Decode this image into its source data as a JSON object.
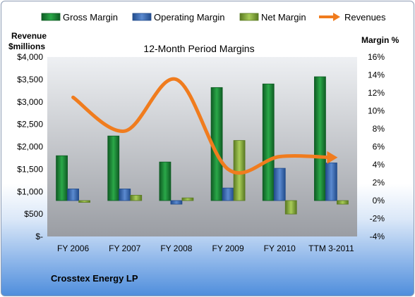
{
  "legend": [
    {
      "label": "Gross Margin",
      "color": "#1e8c3a",
      "kind": "box"
    },
    {
      "label": "Operating Margin",
      "color": "#3d6fb8",
      "kind": "box"
    },
    {
      "label": "Net Margin",
      "color": "#8db540",
      "kind": "box"
    },
    {
      "label": "Revenues",
      "color": "#f07c1e",
      "kind": "arrow"
    }
  ],
  "labels": {
    "left_axis_title_line1": "Revenue",
    "left_axis_title_line2": "$millions",
    "right_axis_title": "Margin %",
    "chart_title": "12-Month Period Margins",
    "company": "Crosstex Energy LP"
  },
  "chart_data": {
    "type": "bar",
    "title": "12-Month Period Margins",
    "categories": [
      "FY 2006",
      "FY 2007",
      "FY 2008",
      "FY 2009",
      "FY 2010",
      "TTM 3-2011"
    ],
    "series": [
      {
        "name": "Gross Margin",
        "axis": "right",
        "values": [
          5.0,
          7.2,
          4.3,
          12.6,
          13.0,
          13.8
        ],
        "color": "#1e8c3a"
      },
      {
        "name": "Operating Margin",
        "axis": "right",
        "values": [
          1.3,
          1.3,
          -0.4,
          1.4,
          3.6,
          4.2
        ],
        "color": "#3d6fb8"
      },
      {
        "name": "Net Margin",
        "axis": "right",
        "values": [
          -0.2,
          0.6,
          0.3,
          6.7,
          -1.5,
          -0.4
        ],
        "color": "#8db540"
      },
      {
        "name": "Revenues",
        "type": "line",
        "axis": "left",
        "values": [
          3100,
          2350,
          3500,
          1500,
          1780,
          1760
        ],
        "color": "#f07c1e"
      }
    ],
    "left_axis": {
      "title": "Revenue $millions",
      "range": [
        0,
        4000
      ],
      "ticks": [
        0,
        500,
        1000,
        1500,
        2000,
        2500,
        3000,
        3500,
        4000
      ],
      "tick_labels": [
        "$-",
        "$500",
        "$1,000",
        "$1,500",
        "$2,000",
        "$2,500",
        "$3,000",
        "$3,500",
        "$4,000"
      ]
    },
    "right_axis": {
      "title": "Margin %",
      "range": [
        -4,
        16
      ],
      "ticks": [
        -4,
        -2,
        0,
        2,
        4,
        6,
        8,
        10,
        12,
        14,
        16
      ],
      "tick_labels": [
        "-4%",
        "-2%",
        "0%",
        "2%",
        "4%",
        "6%",
        "8%",
        "10%",
        "12%",
        "14%",
        "16%"
      ]
    },
    "grid": false,
    "legend_position": "top"
  }
}
